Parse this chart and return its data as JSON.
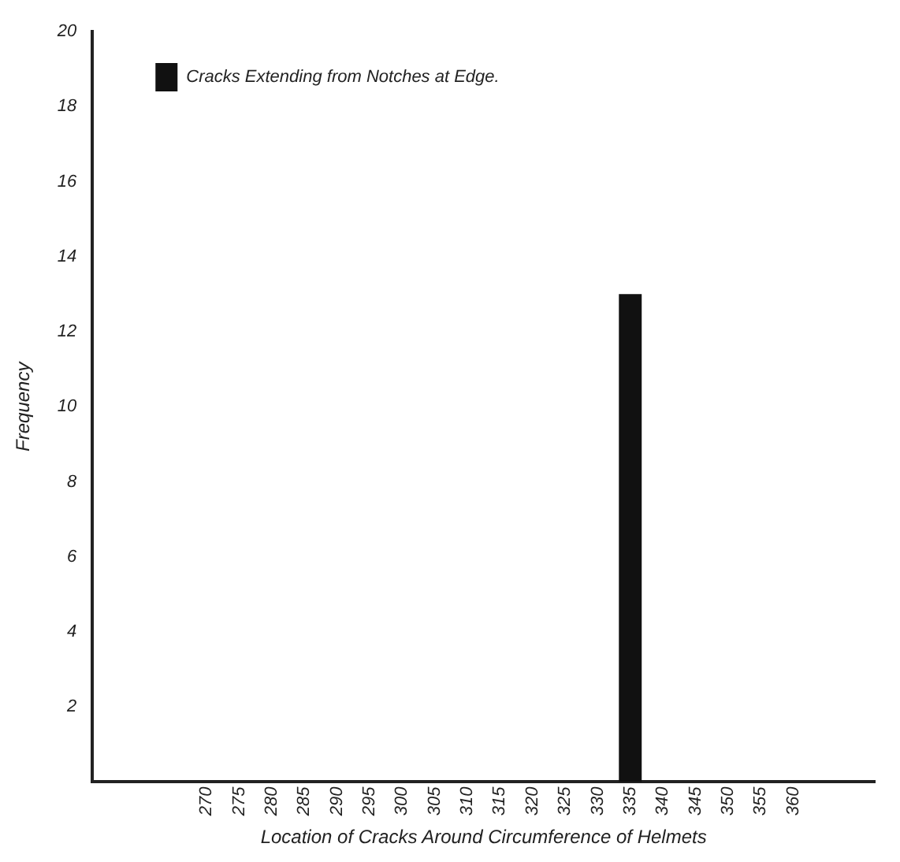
{
  "chart_data": {
    "type": "bar",
    "xlabel": "Location of Cracks Around Circumference of Helmets",
    "ylabel": "Frequency",
    "categories": [
      null,
      null,
      null,
      "270",
      "275",
      "280",
      "285",
      "290",
      "295",
      "300",
      "305",
      "310",
      "315",
      "320",
      "325",
      "330",
      "335",
      "340",
      "345",
      "350",
      "355",
      "360",
      null,
      null
    ],
    "series": [
      {
        "name": "Cracks Extending from Notches at Edge.",
        "color": "#111111",
        "values": [
          null,
          null,
          null,
          null,
          null,
          null,
          null,
          null,
          null,
          null,
          null,
          null,
          null,
          null,
          null,
          null,
          13,
          null,
          null,
          null,
          null,
          null,
          null,
          null
        ]
      }
    ],
    "ylim": [
      0,
      20
    ],
    "yticks": [
      2,
      4,
      6,
      8,
      10,
      12,
      14,
      16,
      18,
      20
    ],
    "grid": false,
    "legend": "top left"
  }
}
